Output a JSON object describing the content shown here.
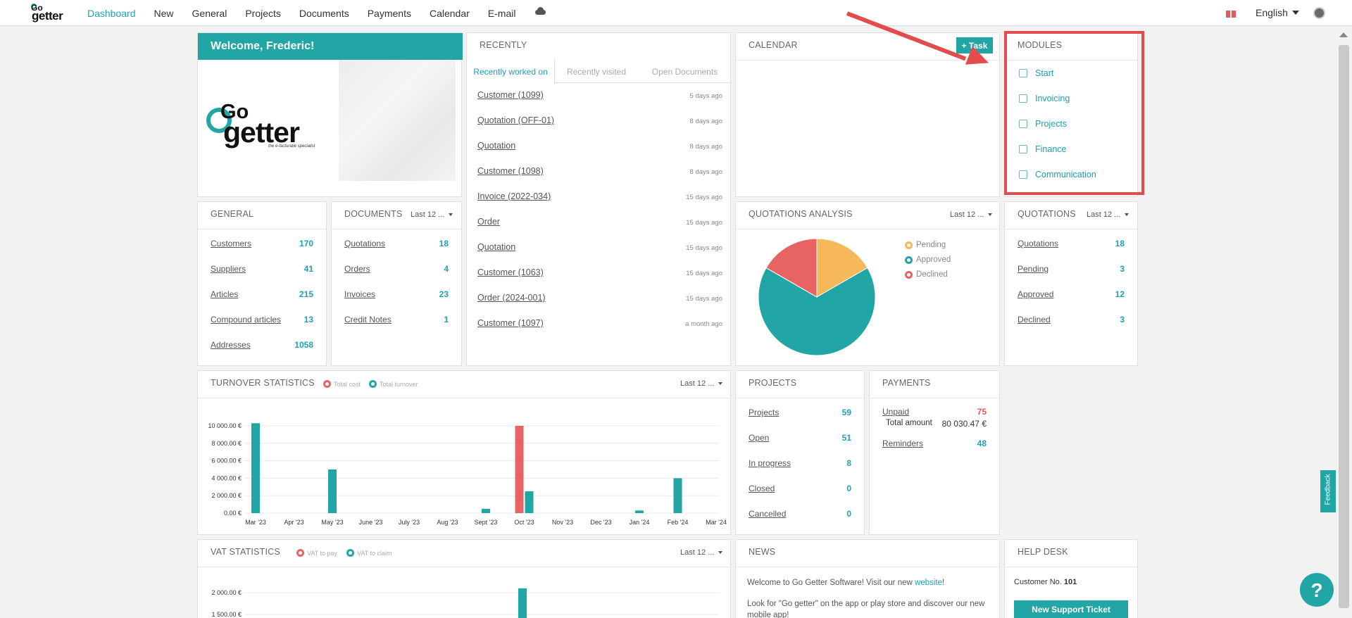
{
  "nav": {
    "logo_go": "Go",
    "logo_getter": "getter",
    "items": [
      "Dashboard",
      "New",
      "General",
      "Projects",
      "Documents",
      "Payments",
      "Calendar",
      "E-mail"
    ],
    "active": "Dashboard",
    "language": "English"
  },
  "welcome": {
    "title": "Welcome, Frederic!",
    "logo_go": "Go",
    "logo_getter": "getter",
    "logo_tagline": "the e-facturatie specialist"
  },
  "recently": {
    "title": "RECENTLY",
    "tabs": [
      "Recently worked on",
      "Recently visited",
      "Open Documents"
    ],
    "items": [
      {
        "label": "Customer (1099)",
        "ago": "5 days ago"
      },
      {
        "label": "Quotation (OFF-01)",
        "ago": "8 days ago"
      },
      {
        "label": "Quotation",
        "ago": "8 days ago"
      },
      {
        "label": "Customer (1098)",
        "ago": "8 days ago"
      },
      {
        "label": "Invoice (2022-034)",
        "ago": "15 days ago"
      },
      {
        "label": "Order",
        "ago": "15 days ago"
      },
      {
        "label": "Quotation",
        "ago": "15 days ago"
      },
      {
        "label": "Customer (1063)",
        "ago": "15 days ago"
      },
      {
        "label": "Order (2024-001)",
        "ago": "15 days ago"
      },
      {
        "label": "Customer (1097)",
        "ago": "a month ago"
      }
    ]
  },
  "calendar": {
    "title": "CALENDAR",
    "task_button": "+ Task"
  },
  "modules": {
    "title": "MODULES",
    "items": [
      "Start",
      "Invoicing",
      "Projects",
      "Finance",
      "Communication"
    ]
  },
  "general": {
    "title": "GENERAL",
    "rows": [
      {
        "label": "Customers",
        "value": "170"
      },
      {
        "label": "Suppliers",
        "value": "41"
      },
      {
        "label": "Articles",
        "value": "215"
      },
      {
        "label": "Compound articles",
        "value": "13"
      },
      {
        "label": "Addresses",
        "value": "1058"
      }
    ]
  },
  "documents": {
    "title": "DOCUMENTS",
    "period": "Last 12 ...",
    "rows": [
      {
        "label": "Quotations",
        "value": "18"
      },
      {
        "label": "Orders",
        "value": "4"
      },
      {
        "label": "Invoices",
        "value": "23"
      },
      {
        "label": "Credit Notes",
        "value": "1"
      }
    ]
  },
  "quotations_analysis": {
    "title": "QUOTATIONS ANALYSIS",
    "period": "Last 12 ...",
    "legend": [
      "Pending",
      "Approved",
      "Declined"
    ]
  },
  "quotations": {
    "title": "QUOTATIONS",
    "period": "Last 12 ...",
    "rows": [
      {
        "label": "Quotations",
        "value": "18"
      },
      {
        "label": "Pending",
        "value": "3"
      },
      {
        "label": "Approved",
        "value": "12"
      },
      {
        "label": "Declined",
        "value": "3"
      }
    ]
  },
  "turnover": {
    "title": "TURNOVER STATISTICS",
    "legend": [
      "Total cost",
      "Total turnover"
    ],
    "period": "Last 12 ..."
  },
  "projects": {
    "title": "PROJECTS",
    "rows": [
      {
        "label": "Projects",
        "value": "59"
      },
      {
        "label": "Open",
        "value": "51"
      },
      {
        "label": "In progress",
        "value": "8"
      },
      {
        "label": "Closed",
        "value": "0"
      },
      {
        "label": "Cancelled",
        "value": "0"
      }
    ]
  },
  "payments": {
    "title": "PAYMENTS",
    "unpaid_label": "Unpaid",
    "unpaid_value": "75",
    "total_label": "Total amount",
    "total_value": "80 030.47 €",
    "reminders_label": "Reminders",
    "reminders_value": "48"
  },
  "vat": {
    "title": "VAT STATISTICS",
    "legend": [
      "VAT to pay",
      "VAT to claim"
    ],
    "period": "Last 12 ..."
  },
  "news": {
    "title": "NEWS",
    "line1_pre": "Welcome to Go Getter Software! Visit our new ",
    "line1_link": "website",
    "line1_post": "!",
    "line2": "Look for \"Go getter\" on the app or play store and discover our new mobile app!"
  },
  "helpdesk": {
    "title": "HELP DESK",
    "customer_label": "Customer No.",
    "customer_no": "101",
    "button": "New Support Ticket"
  },
  "feedback": "Feedback",
  "help_icon": "?",
  "colors": {
    "accent": "#21a5a5",
    "red": "#e86464",
    "orange": "#f7b85c",
    "callout": "#e24c4c"
  },
  "chart_data": [
    {
      "type": "pie",
      "categories": [
        "Pending",
        "Approved",
        "Declined"
      ],
      "values": [
        3,
        12,
        3
      ],
      "colors": [
        "#f7b85c",
        "#21a5a5",
        "#e86464"
      ],
      "legend_position": "right"
    },
    {
      "type": "bar",
      "categories": [
        "Mar '23",
        "Apr '23",
        "May '23",
        "June '23",
        "July '23",
        "Aug '23",
        "Sept '23",
        "Oct '23",
        "Nov '23",
        "Dec '23",
        "Jan '24",
        "Feb '24",
        "Mar '24"
      ],
      "series": [
        {
          "name": "Total cost",
          "values": [
            0,
            0,
            0,
            0,
            0,
            0,
            0,
            10000,
            0,
            0,
            0,
            0,
            0
          ],
          "color": "#e86464"
        },
        {
          "name": "Total turnover",
          "values": [
            10300,
            0,
            5000,
            0,
            0,
            0,
            500,
            2500,
            0,
            0,
            300,
            4000,
            0
          ],
          "color": "#21a5a5"
        }
      ],
      "yticks": [
        "0.00 €",
        "2 000.00 €",
        "4 000.00 €",
        "6 000.00 €",
        "8 000.00 €",
        "10 000.00 €"
      ],
      "ylim": [
        0,
        10000
      ],
      "grid": true,
      "legend_position": "top"
    },
    {
      "type": "bar",
      "series": [
        {
          "name": "VAT to pay",
          "values": [
            0
          ],
          "color": "#e86464"
        },
        {
          "name": "VAT to claim",
          "values": [
            2100
          ],
          "color": "#21a5a5"
        }
      ],
      "yticks": [
        "1 500.00 €",
        "2 000.00 €"
      ],
      "grid": true,
      "legend_position": "top"
    }
  ]
}
